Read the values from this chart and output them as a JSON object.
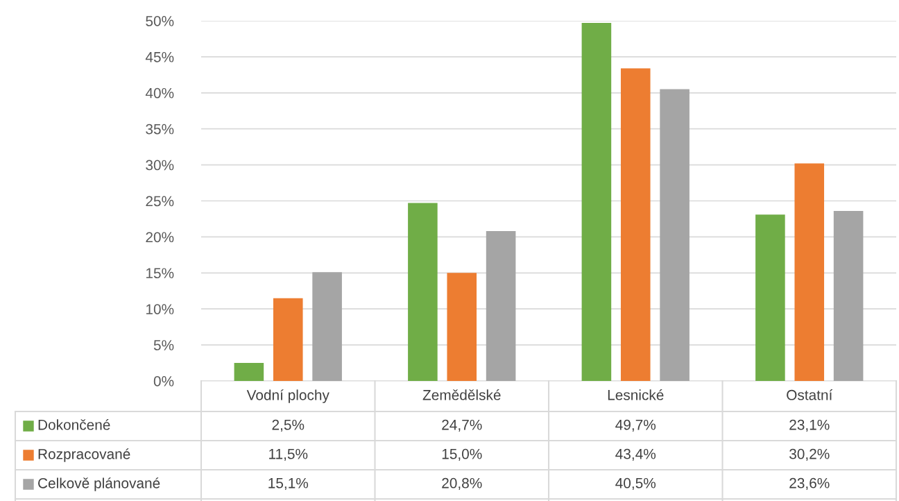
{
  "chart_data": {
    "type": "bar",
    "categories": [
      "Vodní plochy",
      "Zemědělské",
      "Lesnické",
      "Ostatní"
    ],
    "series": [
      {
        "name": "Dokončené",
        "color": "#70ad47",
        "values": [
          2.5,
          24.7,
          49.7,
          23.1
        ],
        "value_labels": [
          "2,5%",
          "24,7%",
          "49,7%",
          "23,1%"
        ]
      },
      {
        "name": "Rozpracované",
        "color": "#ed7d31",
        "values": [
          11.5,
          15.0,
          43.4,
          30.2
        ],
        "value_labels": [
          "11,5%",
          "15,0%",
          "43,4%",
          "30,2%"
        ]
      },
      {
        "name": "Celkově plánované",
        "color": "#a5a5a5",
        "values": [
          15.1,
          20.8,
          40.5,
          23.6
        ],
        "value_labels": [
          "15,1%",
          "20,8%",
          "40,5%",
          "23,6%"
        ]
      }
    ],
    "ylim": [
      0,
      50
    ],
    "yticks": [
      {
        "value": 0,
        "label": "0%"
      },
      {
        "value": 5,
        "label": "5%"
      },
      {
        "value": 10,
        "label": "10%"
      },
      {
        "value": 15,
        "label": "15%"
      },
      {
        "value": 20,
        "label": "20%"
      },
      {
        "value": 25,
        "label": "25%"
      },
      {
        "value": 30,
        "label": "30%"
      },
      {
        "value": 35,
        "label": "35%"
      },
      {
        "value": 40,
        "label": "40%"
      },
      {
        "value": 45,
        "label": "45%"
      },
      {
        "value": 50,
        "label": "50%"
      }
    ],
    "grid": "y",
    "legend": "bottom left"
  }
}
